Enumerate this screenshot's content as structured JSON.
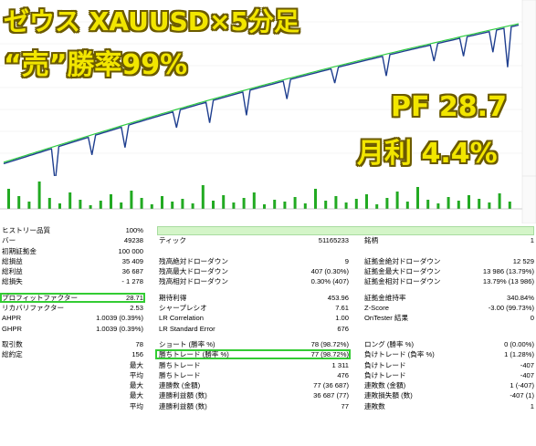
{
  "overlay": {
    "title1": "ゼウス XAUUSD×5分足",
    "title2": "“売”勝率99%",
    "pf": "PF 28.7",
    "monthly": "月利 4.4%"
  },
  "colors": {
    "overlay_text": "#f2e600",
    "overlay_outline": "#6b5a00",
    "equity_line": "#1f3f8f",
    "balance_line": "#2ecc40",
    "volume_bars": "#22aa22",
    "highlight": "#33cc33"
  },
  "stats": {
    "rows": [
      {
        "l1": "ヒストリー品質",
        "v1": "100%",
        "greenbar": true
      },
      {
        "l1": "バー",
        "v1": "49238",
        "l2": "ティック",
        "v2": "51165233",
        "l3": "銘柄",
        "v3": "1"
      },
      {
        "l1": "初期証拠金",
        "v1": "100 000"
      },
      {
        "l1": "総損益",
        "v1": "35 409",
        "l2": "残高絶対ドローダウン",
        "v2": "9",
        "l3": "証拠金絶対ドローダウン",
        "v3": "12 529"
      },
      {
        "l1": "総利益",
        "v1": "36 687",
        "l2": "残高最大ドローダウン",
        "v2": "407 (0.30%)",
        "l3": "証拠金最大ドローダウン",
        "v3": "13 986 (13.79%)"
      },
      {
        "l1": "総損失",
        "v1": "- 1 278",
        "l2": "残高相対ドローダウン",
        "v2": "0.30% (407)",
        "l3": "証拠金相対ドローダウン",
        "v3": "13.79% (13 986)"
      },
      {
        "spacer": true
      },
      {
        "l1": "プロフィットファクター",
        "v1": "28.71",
        "l2": "期待利得",
        "v2": "453.96",
        "l3": "証拠金維持率",
        "v3": "340.84%",
        "hl1": true
      },
      {
        "l1": "リカバリファクター",
        "v1": "2.53",
        "l2": "シャープレシオ",
        "v2": "7.61",
        "l3": "Z-Score",
        "v3": "-3.00 (99.73%)"
      },
      {
        "l1": "AHPR",
        "v1": "1.0039 (0.39%)",
        "l2": "LR Correlation",
        "v2": "1.00",
        "l3": "OnTester 結果",
        "v3": "0"
      },
      {
        "l1": "GHPR",
        "v1": "1.0039 (0.39%)",
        "l2": "LR Standard Error",
        "v2": "676"
      },
      {
        "spacer": true
      },
      {
        "l1": "取引数",
        "v1": "78",
        "l2": "ショート (勝率 %)",
        "v2": "78 (98.72%)",
        "l3": "ロング (勝率 %)",
        "v3": "0 (0.00%)"
      },
      {
        "l1": "総約定",
        "v1": "156",
        "l2": "勝ちトレード (勝率 %)",
        "v2": "77 (98.72%)",
        "l3": "負けトレード (負率 %)",
        "v3": "1 (1.28%)",
        "hl2": true
      },
      {
        "v1": "最大",
        "l2": "勝ちトレード",
        "v2": "1 311",
        "l3": "負けトレード",
        "v3": "-407"
      },
      {
        "v1": "平均",
        "l2": "勝ちトレード",
        "v2": "476",
        "l3": "負けトレード",
        "v3": "-407"
      },
      {
        "v1": "最大",
        "l2": "連勝数 (金額)",
        "v2": "77 (36 687)",
        "l3": "連敗数 (金額)",
        "v3": "1 (-407)"
      },
      {
        "v1": "最大",
        "l2": "連勝利益額 (数)",
        "v2": "36 687 (77)",
        "l3": "連敗損失額 (数)",
        "v3": "-407 (1)"
      },
      {
        "v1": "平均",
        "l2": "連勝利益額 (数)",
        "v2": "77",
        "l3": "連敗数",
        "v3": "1"
      }
    ]
  }
}
